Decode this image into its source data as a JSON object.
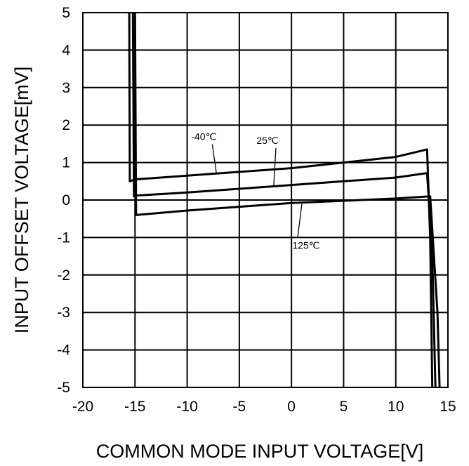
{
  "chart_data": {
    "type": "line",
    "title": "",
    "xlabel": "COMMON MODE INPUT VOLTAGE[V]",
    "ylabel": "INPUT OFFSET VOLTAGE[mV]",
    "xlim": [
      -20,
      15
    ],
    "ylim": [
      -5,
      5
    ],
    "xticks": [
      "-20",
      "-15",
      "-10",
      "-5",
      "0",
      "5",
      "10",
      "15"
    ],
    "yticks": [
      "5",
      "4",
      "3",
      "2",
      "1",
      "0",
      "-1",
      "-2",
      "-3",
      "-4",
      "-5"
    ],
    "grid": true,
    "series": [
      {
        "name": "-40℃",
        "x": [
          -15.55,
          -15.5,
          -15.0,
          -10,
          -5,
          0,
          5,
          10,
          13.0,
          13.3,
          13.5
        ],
        "y": [
          5.0,
          0.5,
          0.55,
          0.65,
          0.75,
          0.85,
          1.0,
          1.15,
          1.35,
          -1.0,
          -5.0
        ]
      },
      {
        "name": "25℃",
        "x": [
          -15.2,
          -15.1,
          -14.9,
          -10,
          -5,
          0,
          5,
          10,
          13.0,
          13.5,
          13.8
        ],
        "y": [
          5.0,
          0.1,
          0.12,
          0.2,
          0.3,
          0.4,
          0.5,
          0.6,
          0.72,
          -1.5,
          -5.0
        ]
      },
      {
        "name": "125℃",
        "x": [
          -15.0,
          -14.9,
          -10,
          -5,
          0,
          5,
          10,
          13.3,
          14.0,
          14.2
        ],
        "y": [
          5.0,
          -0.4,
          -0.28,
          -0.18,
          -0.08,
          -0.02,
          0.04,
          0.1,
          -3.0,
          -5.0
        ]
      }
    ],
    "annotations": [
      {
        "text": "-40℃",
        "x": -8.4,
        "y": 1.6,
        "px": -7.2,
        "py": 0.72
      },
      {
        "text": "25℃",
        "x": -2.3,
        "y": 1.5,
        "py": 0.38,
        "px": -1.7
      },
      {
        "text": "125℃",
        "x": 1.4,
        "y": -1.3,
        "px": 1.0,
        "py": -0.1
      }
    ]
  }
}
